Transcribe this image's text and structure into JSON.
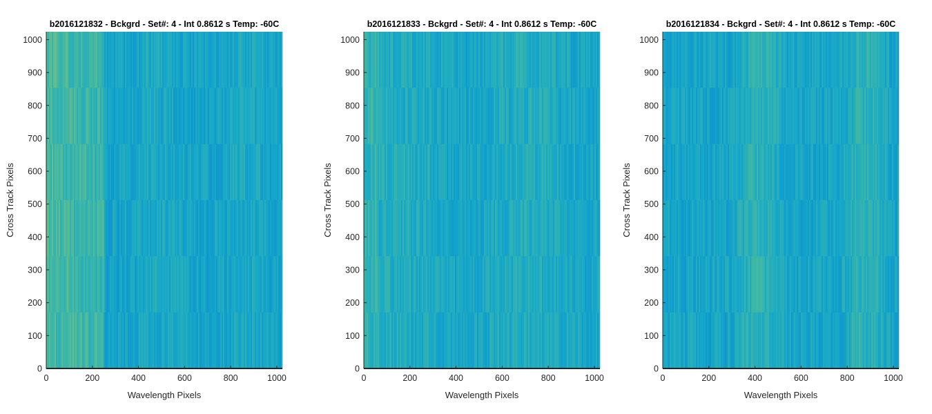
{
  "chart_data": [
    {
      "type": "heatmap",
      "title": "b2016121832 - Bckgrd - Set#: 4 - Int 0.8612 s Temp: -60C",
      "xlabel": "Wavelength Pixels",
      "ylabel": "Cross Track Pixels",
      "xlim": [
        0,
        1024
      ],
      "ylim": [
        0,
        1024
      ],
      "xticks": [
        0,
        200,
        400,
        600,
        800,
        1000
      ],
      "yticks": [
        0,
        100,
        200,
        300,
        400,
        500,
        600,
        700,
        800,
        900,
        1000
      ],
      "colormap": [
        "#0b8fd0",
        "#16a8c9",
        "#3fb7a6",
        "#8ec36c"
      ],
      "pattern": "warmer (yellow-green) columns for wavelength pixels 0-250, cooler (blue) from 250 to 1024 with vertical streaks"
    },
    {
      "type": "heatmap",
      "title": "b2016121833 - Bckgrd - Set#: 4 - Int 0.8612 s Temp: -60C",
      "xlabel": "Wavelength Pixels",
      "ylabel": "Cross Track Pixels",
      "xlim": [
        0,
        1024
      ],
      "ylim": [
        0,
        1024
      ],
      "xticks": [
        0,
        200,
        400,
        600,
        800,
        1000
      ],
      "yticks": [
        0,
        100,
        200,
        300,
        400,
        500,
        600,
        700,
        800,
        900,
        1000
      ],
      "colormap": [
        "#0b8fd0",
        "#16a8c9",
        "#3fb7a6",
        "#8ec36c"
      ],
      "pattern": "mostly uniform blue-teal with vertical streaks, slightly warmer near wavelength pixel 0"
    },
    {
      "type": "heatmap",
      "title": "b2016121834 - Bckgrd - Set#: 4 - Int 0.8612 s Temp: -60C",
      "xlabel": "Wavelength Pixels",
      "ylabel": "Cross Track Pixels",
      "xlim": [
        0,
        1024
      ],
      "ylim": [
        0,
        1024
      ],
      "xticks": [
        0,
        200,
        400,
        600,
        800,
        1000
      ],
      "yticks": [
        0,
        100,
        200,
        300,
        400,
        500,
        600,
        700,
        800,
        900,
        1000
      ],
      "colormap": [
        "#0b8fd0",
        "#16a8c9",
        "#3fb7a6",
        "#8ec36c"
      ],
      "pattern": "blue on left (0-300), warmer green band around 400-600 and 800-1000 with vertical streaks"
    }
  ]
}
